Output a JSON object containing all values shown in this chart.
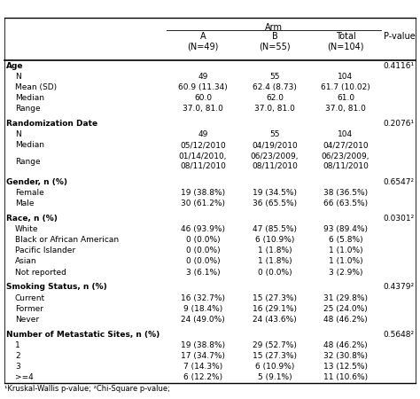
{
  "col_headers": [
    "",
    "A\n(N=49)",
    "B\n(N=55)",
    "Total\n(N=104)",
    "P-value"
  ],
  "rows": [
    {
      "label": "Age",
      "bold": true,
      "indent": 0,
      "a": "",
      "b": "",
      "total": "",
      "pvalue": "0.4116¹",
      "section_start": true,
      "spacer": false
    },
    {
      "label": "N",
      "bold": false,
      "indent": 1,
      "a": "49",
      "b": "55",
      "total": "104",
      "pvalue": "",
      "spacer": false
    },
    {
      "label": "Mean (SD)",
      "bold": false,
      "indent": 1,
      "a": "60.9 (11.34)",
      "b": "62.4 (8.73)",
      "total": "61.7 (10.02)",
      "pvalue": "",
      "spacer": false
    },
    {
      "label": "Median",
      "bold": false,
      "indent": 1,
      "a": "60.0",
      "b": "62.0",
      "total": "61.0",
      "pvalue": "",
      "spacer": false
    },
    {
      "label": "Range",
      "bold": false,
      "indent": 1,
      "a": "37.0, 81.0",
      "b": "37.0, 81.0",
      "total": "37.0, 81.0",
      "pvalue": "",
      "spacer": false
    },
    {
      "label": "",
      "bold": false,
      "indent": 0,
      "a": "",
      "b": "",
      "total": "",
      "pvalue": "",
      "spacer": true
    },
    {
      "label": "Randomization Date",
      "bold": true,
      "indent": 0,
      "a": "",
      "b": "",
      "total": "",
      "pvalue": "0.2076¹",
      "section_start": true,
      "spacer": false
    },
    {
      "label": "N",
      "bold": false,
      "indent": 1,
      "a": "49",
      "b": "55",
      "total": "104",
      "pvalue": "",
      "spacer": false
    },
    {
      "label": "Median",
      "bold": false,
      "indent": 1,
      "a": "05/12/2010",
      "b": "04/19/2010",
      "total": "04/27/2010",
      "pvalue": "",
      "spacer": false
    },
    {
      "label": "Range",
      "bold": false,
      "indent": 1,
      "a": "01/14/2010,\n08/11/2010",
      "b": "06/23/2009,\n08/11/2010",
      "total": "06/23/2009,\n08/11/2010",
      "pvalue": "",
      "spacer": false
    },
    {
      "label": "",
      "bold": false,
      "indent": 0,
      "a": "",
      "b": "",
      "total": "",
      "pvalue": "",
      "spacer": true
    },
    {
      "label": "Gender, n (%)",
      "bold": true,
      "indent": 0,
      "a": "",
      "b": "",
      "total": "",
      "pvalue": "0.6547²",
      "section_start": true,
      "spacer": false
    },
    {
      "label": "Female",
      "bold": false,
      "indent": 1,
      "a": "19 (38.8%)",
      "b": "19 (34.5%)",
      "total": "38 (36.5%)",
      "pvalue": "",
      "spacer": false
    },
    {
      "label": "Male",
      "bold": false,
      "indent": 1,
      "a": "30 (61.2%)",
      "b": "36 (65.5%)",
      "total": "66 (63.5%)",
      "pvalue": "",
      "spacer": false
    },
    {
      "label": "",
      "bold": false,
      "indent": 0,
      "a": "",
      "b": "",
      "total": "",
      "pvalue": "",
      "spacer": true
    },
    {
      "label": "Race, n (%)",
      "bold": true,
      "indent": 0,
      "a": "",
      "b": "",
      "total": "",
      "pvalue": "0.0301²",
      "section_start": true,
      "spacer": false
    },
    {
      "label": "White",
      "bold": false,
      "indent": 1,
      "a": "46 (93.9%)",
      "b": "47 (85.5%)",
      "total": "93 (89.4%)",
      "pvalue": "",
      "spacer": false
    },
    {
      "label": "Black or African American",
      "bold": false,
      "indent": 1,
      "a": "0 (0.0%)",
      "b": "6 (10.9%)",
      "total": "6 (5.8%)",
      "pvalue": "",
      "spacer": false
    },
    {
      "label": "Pacific Islander",
      "bold": false,
      "indent": 1,
      "a": "0 (0.0%)",
      "b": "1 (1.8%)",
      "total": "1 (1.0%)",
      "pvalue": "",
      "spacer": false
    },
    {
      "label": "Asian",
      "bold": false,
      "indent": 1,
      "a": "0 (0.0%)",
      "b": "1 (1.8%)",
      "total": "1 (1.0%)",
      "pvalue": "",
      "spacer": false
    },
    {
      "label": "Not reported",
      "bold": false,
      "indent": 1,
      "a": "3 (6.1%)",
      "b": "0 (0.0%)",
      "total": "3 (2.9%)",
      "pvalue": "",
      "spacer": false
    },
    {
      "label": "",
      "bold": false,
      "indent": 0,
      "a": "",
      "b": "",
      "total": "",
      "pvalue": "",
      "spacer": true
    },
    {
      "label": "Smoking Status, n (%)",
      "bold": true,
      "indent": 0,
      "a": "",
      "b": "",
      "total": "",
      "pvalue": "0.4379²",
      "section_start": true,
      "spacer": false
    },
    {
      "label": "Current",
      "bold": false,
      "indent": 1,
      "a": "16 (32.7%)",
      "b": "15 (27.3%)",
      "total": "31 (29.8%)",
      "pvalue": "",
      "spacer": false
    },
    {
      "label": "Former",
      "bold": false,
      "indent": 1,
      "a": "9 (18.4%)",
      "b": "16 (29.1%)",
      "total": "25 (24.0%)",
      "pvalue": "",
      "spacer": false
    },
    {
      "label": "Never",
      "bold": false,
      "indent": 1,
      "a": "24 (49.0%)",
      "b": "24 (43.6%)",
      "total": "48 (46.2%)",
      "pvalue": "",
      "spacer": false
    },
    {
      "label": "",
      "bold": false,
      "indent": 0,
      "a": "",
      "b": "",
      "total": "",
      "pvalue": "",
      "spacer": true
    },
    {
      "label": "Number of Metastatic Sites, n (%)",
      "bold": true,
      "indent": 0,
      "a": "",
      "b": "",
      "total": "",
      "pvalue": "0.5648²",
      "section_start": true,
      "spacer": false
    },
    {
      "label": "1",
      "bold": false,
      "indent": 1,
      "a": "19 (38.8%)",
      "b": "29 (52.7%)",
      "total": "48 (46.2%)",
      "pvalue": "",
      "spacer": false
    },
    {
      "label": "2",
      "bold": false,
      "indent": 1,
      "a": "17 (34.7%)",
      "b": "15 (27.3%)",
      "total": "32 (30.8%)",
      "pvalue": "",
      "spacer": false
    },
    {
      "label": "3",
      "bold": false,
      "indent": 1,
      "a": "7 (14.3%)",
      "b": "6 (10.9%)",
      "total": "13 (12.5%)",
      "pvalue": "",
      "spacer": false
    },
    {
      "label": ">=4",
      "bold": false,
      "indent": 1,
      "a": "6 (12.2%)",
      "b": "5 (9.1%)",
      "total": "11 (10.6%)",
      "pvalue": "",
      "spacer": false
    }
  ],
  "footnote": "¹Kruskal-Wallis p-value; ²Chi-Square p-value;",
  "font_size": 6.5,
  "header_font_size": 7.0
}
